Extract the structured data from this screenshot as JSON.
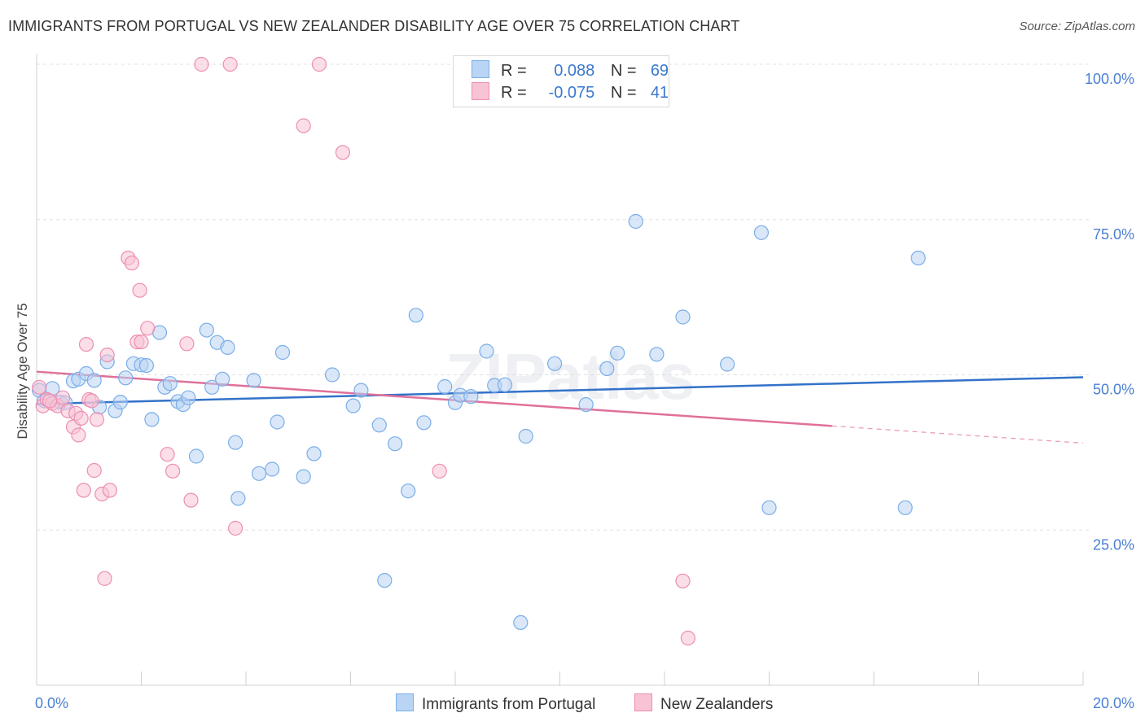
{
  "title": "IMMIGRANTS FROM PORTUGAL VS NEW ZEALANDER DISABILITY AGE OVER 75 CORRELATION CHART",
  "source": "Source: ZipAtlas.com",
  "watermark": "ZIPatlas",
  "legend": {
    "r_label": "R =",
    "n_label": "N =",
    "rows": [
      {
        "r": "0.088",
        "n": "69"
      },
      {
        "r": "-0.075",
        "n": "41"
      }
    ]
  },
  "chart_data": {
    "type": "scatter",
    "title": "IMMIGRANTS FROM PORTUGAL VS NEW ZEALANDER DISABILITY AGE OVER 75 CORRELATION CHART",
    "xlabel": "",
    "ylabel": "Disability Age Over 75",
    "xlim": [
      0,
      20
    ],
    "ylim": [
      0,
      102
    ],
    "x_ticks": [
      "0.0%",
      "20.0%"
    ],
    "y_ticks": [
      {
        "value": 25,
        "label": "25.0%"
      },
      {
        "value": 50,
        "label": "50.0%"
      },
      {
        "value": 75,
        "label": "75.0%"
      },
      {
        "value": 100,
        "label": "100.0%"
      }
    ],
    "grid": "horizontal dashed",
    "legend_position": "top-center and bottom",
    "series": [
      {
        "name": "Immigrants from Portugal",
        "color": "#7aaee8",
        "fill": "#b9d4f4",
        "trend": {
          "x0": 0,
          "y0": 45.3,
          "x1": 20,
          "y1": 49.6,
          "dashed_from": null
        },
        "points": [
          [
            0.05,
            47.5
          ],
          [
            0.15,
            45.8
          ],
          [
            0.3,
            47.8
          ],
          [
            0.45,
            45.6
          ],
          [
            0.55,
            45.5
          ],
          [
            0.7,
            49.0
          ],
          [
            0.8,
            49.3
          ],
          [
            0.95,
            50.2
          ],
          [
            1.1,
            49.1
          ],
          [
            1.2,
            44.8
          ],
          [
            1.35,
            52.1
          ],
          [
            1.5,
            44.2
          ],
          [
            1.6,
            45.6
          ],
          [
            1.7,
            49.5
          ],
          [
            1.85,
            51.8
          ],
          [
            2.0,
            51.6
          ],
          [
            2.1,
            51.5
          ],
          [
            2.2,
            42.8
          ],
          [
            2.35,
            56.8
          ],
          [
            2.45,
            48.0
          ],
          [
            2.55,
            48.6
          ],
          [
            2.7,
            45.7
          ],
          [
            2.8,
            45.2
          ],
          [
            2.9,
            46.3
          ],
          [
            3.05,
            36.9
          ],
          [
            3.25,
            57.2
          ],
          [
            3.35,
            48.0
          ],
          [
            3.45,
            55.2
          ],
          [
            3.55,
            49.3
          ],
          [
            3.65,
            54.4
          ],
          [
            3.8,
            39.1
          ],
          [
            3.85,
            30.1
          ],
          [
            4.15,
            49.1
          ],
          [
            4.25,
            34.1
          ],
          [
            4.5,
            34.8
          ],
          [
            4.6,
            42.4
          ],
          [
            4.7,
            53.6
          ],
          [
            5.1,
            33.6
          ],
          [
            5.3,
            37.3
          ],
          [
            5.65,
            50.0
          ],
          [
            6.05,
            45.0
          ],
          [
            6.2,
            47.5
          ],
          [
            6.55,
            41.9
          ],
          [
            6.65,
            16.9
          ],
          [
            6.85,
            38.9
          ],
          [
            7.1,
            31.3
          ],
          [
            7.25,
            59.6
          ],
          [
            7.4,
            42.3
          ],
          [
            7.8,
            48.1
          ],
          [
            8.0,
            45.5
          ],
          [
            8.1,
            46.7
          ],
          [
            8.3,
            46.5
          ],
          [
            8.6,
            53.8
          ],
          [
            8.75,
            48.3
          ],
          [
            8.95,
            48.4
          ],
          [
            9.25,
            10.1
          ],
          [
            9.35,
            40.1
          ],
          [
            9.9,
            51.8
          ],
          [
            10.5,
            45.2
          ],
          [
            10.9,
            51.0
          ],
          [
            11.1,
            53.5
          ],
          [
            11.45,
            74.7
          ],
          [
            11.85,
            53.3
          ],
          [
            12.35,
            59.3
          ],
          [
            13.2,
            51.7
          ],
          [
            13.85,
            72.9
          ],
          [
            14.0,
            28.6
          ],
          [
            16.85,
            68.8
          ],
          [
            16.6,
            28.6
          ]
        ]
      },
      {
        "name": "New Zealanders",
        "color": "#ec8fb0",
        "fill": "#f8c3d5",
        "trend": {
          "x0": 0,
          "y0": 50.5,
          "x1": 20,
          "y1": 39.0,
          "dashed_from": 15.2
        },
        "points": [
          [
            0.05,
            48.0
          ],
          [
            0.12,
            45.0
          ],
          [
            0.2,
            46.0
          ],
          [
            0.3,
            45.4
          ],
          [
            0.4,
            45.0
          ],
          [
            0.5,
            46.3
          ],
          [
            0.6,
            44.2
          ],
          [
            0.7,
            41.6
          ],
          [
            0.75,
            43.8
          ],
          [
            0.8,
            40.3
          ],
          [
            0.85,
            43.0
          ],
          [
            0.9,
            31.4
          ],
          [
            0.95,
            54.9
          ],
          [
            1.0,
            46.0
          ],
          [
            1.05,
            45.8
          ],
          [
            1.1,
            34.6
          ],
          [
            1.15,
            42.8
          ],
          [
            1.25,
            30.8
          ],
          [
            1.3,
            17.2
          ],
          [
            1.35,
            53.2
          ],
          [
            1.4,
            31.4
          ],
          [
            1.75,
            68.8
          ],
          [
            1.82,
            68.0
          ],
          [
            1.92,
            55.3
          ],
          [
            1.97,
            63.6
          ],
          [
            2.0,
            55.3
          ],
          [
            2.12,
            57.5
          ],
          [
            2.5,
            37.2
          ],
          [
            2.6,
            34.5
          ],
          [
            2.87,
            55.0
          ],
          [
            2.95,
            29.8
          ],
          [
            3.15,
            100.0
          ],
          [
            3.7,
            100.0
          ],
          [
            3.8,
            25.3
          ],
          [
            5.1,
            90.1
          ],
          [
            5.4,
            100.0
          ],
          [
            5.85,
            85.8
          ],
          [
            7.7,
            34.5
          ],
          [
            12.35,
            16.8
          ],
          [
            12.45,
            7.6
          ],
          [
            0.25,
            45.8
          ]
        ]
      }
    ]
  },
  "bottom_legend": [
    "Immigrants from Portugal",
    "New Zealanders"
  ]
}
